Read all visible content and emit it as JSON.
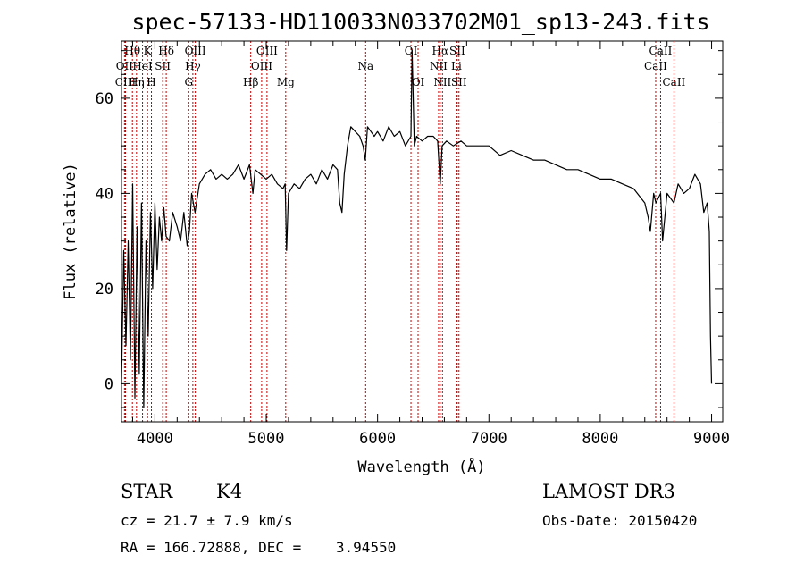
{
  "chart_data": {
    "type": "line",
    "title": "spec-57133-HD110033N033702M01_sp13-243.fits",
    "xlabel": "Wavelength (Å)",
    "ylabel": "Flux (relative)",
    "xlim": [
      3700,
      9100
    ],
    "ylim": [
      -8,
      72
    ],
    "xticks": [
      4000,
      5000,
      6000,
      7000,
      8000,
      9000
    ],
    "yticks": [
      0,
      20,
      40,
      60
    ],
    "grid": false,
    "series": [
      {
        "x": [
          3700,
          3720,
          3740,
          3760,
          3780,
          3800,
          3820,
          3840,
          3860,
          3880,
          3900,
          3920,
          3940,
          3960,
          3980,
          4000,
          4020,
          4040,
          4060,
          4080,
          4100,
          4130,
          4160,
          4200,
          4230,
          4260,
          4290,
          4310,
          4330,
          4360,
          4400,
          4450,
          4500,
          4550,
          4600,
          4650,
          4700,
          4750,
          4800,
          4850,
          4880,
          4900,
          4950,
          5000,
          5050,
          5100,
          5150,
          5170,
          5183,
          5200,
          5250,
          5300,
          5350,
          5400,
          5450,
          5500,
          5550,
          5600,
          5640,
          5660,
          5680,
          5700,
          5730,
          5760,
          5800,
          5840,
          5870,
          5890,
          5910,
          5940,
          5970,
          6000,
          6050,
          6100,
          6150,
          6200,
          6250,
          6300,
          6310,
          6330,
          6350,
          6400,
          6450,
          6500,
          6540,
          6563,
          6580,
          6620,
          6680,
          6750,
          6800,
          6900,
          7000,
          7100,
          7200,
          7300,
          7400,
          7500,
          7600,
          7700,
          7800,
          7900,
          8000,
          8100,
          8200,
          8300,
          8400,
          8430,
          8450,
          8480,
          8500,
          8542,
          8560,
          8600,
          8662,
          8700,
          8750,
          8800,
          8850,
          8900,
          8930,
          8960,
          8980,
          8990,
          9000
        ],
        "y": [
          0,
          28,
          8,
          30,
          5,
          42,
          -3,
          33,
          2,
          38,
          -5,
          30,
          10,
          36,
          20,
          38,
          24,
          35,
          30,
          37,
          31,
          30,
          36,
          33,
          30,
          36,
          29,
          32,
          40,
          36,
          42,
          44,
          45,
          43,
          44,
          43,
          44,
          46,
          43,
          46,
          40,
          45,
          44,
          43,
          44,
          42,
          41,
          42,
          28,
          40,
          42,
          41,
          43,
          44,
          42,
          45,
          43,
          46,
          45,
          38,
          36,
          44,
          50,
          54,
          53,
          52,
          50,
          47,
          54,
          53,
          52,
          53,
          51,
          54,
          52,
          53,
          50,
          52,
          70,
          50,
          52,
          51,
          52,
          52,
          51,
          42,
          50,
          51,
          50,
          51,
          50,
          50,
          50,
          48,
          49,
          48,
          47,
          47,
          46,
          45,
          45,
          44,
          43,
          43,
          42,
          41,
          38,
          35,
          32,
          40,
          38,
          40,
          30,
          40,
          38,
          42,
          40,
          41,
          44,
          42,
          36,
          38,
          32,
          10,
          0
        ]
      }
    ],
    "line_markers": [
      {
        "wavelength": 3798,
        "label": "Hθ",
        "row": 0
      },
      {
        "wavelength": 3727,
        "label": "OII",
        "row": 1
      },
      {
        "wavelength": 3736,
        "label": "CIII",
        "row": 2
      },
      {
        "wavelength": 3835,
        "label": "Hη",
        "row": 2
      },
      {
        "wavelength": 3889,
        "label": "HeI",
        "row": 1
      },
      {
        "wavelength": 3934,
        "label": "K",
        "row": 0
      },
      {
        "wavelength": 3969,
        "label": "H",
        "row": 2
      },
      {
        "wavelength": 4070,
        "label": "SII",
        "row": 1
      },
      {
        "wavelength": 4102,
        "label": "Hδ",
        "row": 0
      },
      {
        "wavelength": 4304,
        "label": "G",
        "row": 2
      },
      {
        "wavelength": 4341,
        "label": "Hγ",
        "row": 1
      },
      {
        "wavelength": 4363,
        "label": "OIII",
        "row": 0
      },
      {
        "wavelength": 4861,
        "label": "Hβ",
        "row": 2
      },
      {
        "wavelength": 4959,
        "label": "OIII",
        "row": 1
      },
      {
        "wavelength": 5007,
        "label": "OIII",
        "row": 0
      },
      {
        "wavelength": 5175,
        "label": "Mg",
        "row": 2
      },
      {
        "wavelength": 5893,
        "label": "Na",
        "row": 1
      },
      {
        "wavelength": 6300,
        "label": "OI",
        "row": 0
      },
      {
        "wavelength": 6364,
        "label": "OI",
        "row": 2
      },
      {
        "wavelength": 6548,
        "label": "NII",
        "row": 1
      },
      {
        "wavelength": 6563,
        "label": "Hα",
        "row": 0
      },
      {
        "wavelength": 6583,
        "label": "NII",
        "row": 2
      },
      {
        "wavelength": 6708,
        "label": "Li",
        "row": 1
      },
      {
        "wavelength": 6716,
        "label": "SII",
        "row": 0
      },
      {
        "wavelength": 6731,
        "label": "SII",
        "row": 2
      },
      {
        "wavelength": 8498,
        "label": "CaII",
        "row": 1
      },
      {
        "wavelength": 8542,
        "label": "CaII",
        "row": 0
      },
      {
        "wavelength": 8662,
        "label": "CaII",
        "row": 2
      }
    ]
  },
  "info": {
    "object_class": "STAR",
    "subclass": "K4",
    "survey": "LAMOST DR3",
    "cz": "cz = 21.7 ± 7.9 km/s",
    "obs_date": "Obs-Date: 20150420",
    "coords": "RA = 166.72888, DEC =    3.94550"
  },
  "colors": {
    "spectrum": "#000000",
    "line_marker": "#c00000",
    "axis": "#000000"
  }
}
